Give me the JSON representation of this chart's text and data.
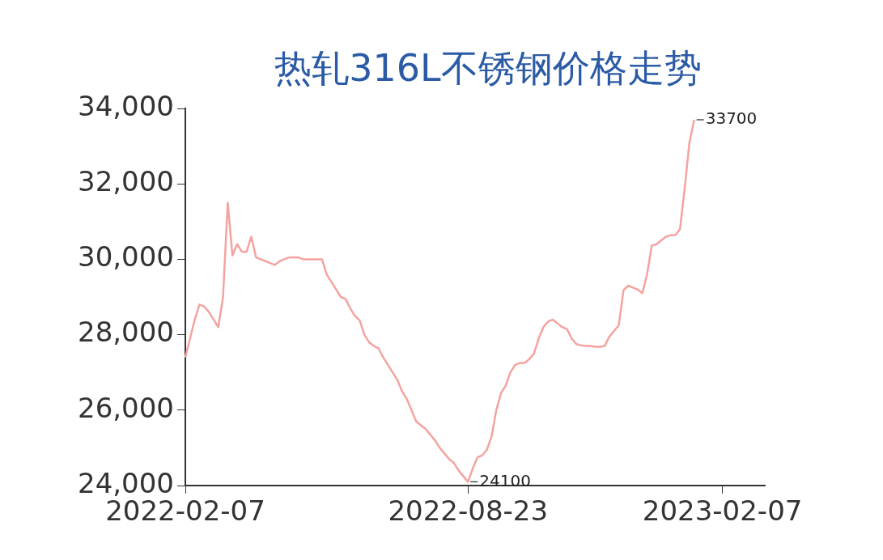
{
  "chart_data": {
    "type": "line",
    "title": "热轧316L不锈钢价格走势",
    "categories": [
      "2022-02-07",
      null,
      null,
      null,
      null,
      null,
      null,
      null,
      null,
      null,
      null,
      null,
      null,
      null,
      null,
      null,
      null,
      null,
      null,
      null,
      null,
      null,
      null,
      null,
      null,
      null,
      null,
      null,
      null,
      null,
      null,
      null,
      null,
      null,
      null,
      null,
      null,
      null,
      null,
      null,
      null,
      null,
      null,
      null,
      null,
      null,
      null,
      null,
      null,
      null,
      null,
      null,
      null,
      null,
      null,
      null,
      null,
      null,
      null,
      null,
      "2022-08-23",
      null,
      null,
      null,
      null,
      null,
      null,
      null,
      null,
      null,
      null,
      null,
      null,
      null,
      null,
      null,
      null,
      null,
      null,
      null,
      null,
      null,
      null,
      null,
      null,
      null,
      null,
      null,
      null,
      null,
      null,
      null,
      null,
      null,
      null,
      null,
      null,
      null,
      null,
      null,
      null,
      null,
      null,
      null,
      null,
      null,
      null,
      null,
      null,
      null,
      null,
      null,
      null,
      null,
      "2023-02-07",
      null,
      null,
      null,
      null,
      null,
      null,
      null,
      null,
      null
    ],
    "series": [
      {
        "color": "#f4a3a0",
        "values": [
          27400,
          27900,
          28400,
          28800,
          28750,
          28600,
          28400,
          28200,
          29000,
          31500,
          30100,
          30400,
          30200,
          30200,
          30600,
          30050,
          30000,
          29950,
          29900,
          29850,
          29950,
          30000,
          30050,
          30050,
          30050,
          30000,
          30000,
          30000,
          30000,
          30000,
          29600,
          29400,
          29200,
          29000,
          28950,
          28700,
          28500,
          28380,
          28000,
          27800,
          27700,
          27640,
          27400,
          27200,
          27000,
          26800,
          26500,
          26300,
          26000,
          25700,
          25600,
          25500,
          25350,
          25200,
          25000,
          24850,
          24700,
          24600,
          24400,
          24250,
          24100,
          24450,
          24750,
          24800,
          24950,
          25300,
          26000,
          26450,
          26650,
          27000,
          27200,
          27250,
          27250,
          27350,
          27500,
          27900,
          28200,
          28350,
          28400,
          28300,
          28200,
          28150,
          27900,
          27750,
          27720,
          27700,
          27700,
          27680,
          27680,
          27700,
          27950,
          28100,
          28250,
          29180,
          29300,
          29250,
          29200,
          29100,
          29600,
          30360,
          30400,
          30500,
          30600,
          30640,
          30640,
          30800,
          31900,
          33100,
          33700,
          null,
          null,
          null,
          null,
          null,
          null,
          null,
          null,
          null,
          null,
          null,
          null,
          null,
          null,
          null
        ],
        "value_labels": [
          null,
          null,
          null,
          null,
          null,
          null,
          null,
          null,
          null,
          null,
          null,
          null,
          null,
          null,
          null,
          null,
          null,
          null,
          null,
          null,
          null,
          null,
          null,
          null,
          null,
          null,
          null,
          null,
          null,
          null,
          null,
          null,
          null,
          null,
          null,
          null,
          null,
          null,
          null,
          null,
          null,
          null,
          null,
          null,
          null,
          null,
          null,
          null,
          null,
          null,
          null,
          null,
          null,
          null,
          null,
          null,
          null,
          null,
          null,
          null,
          "24100",
          null,
          null,
          null,
          null,
          null,
          null,
          null,
          null,
          null,
          null,
          null,
          null,
          null,
          null,
          null,
          null,
          null,
          null,
          null,
          null,
          null,
          null,
          null,
          null,
          null,
          null,
          null,
          null,
          null,
          null,
          null,
          null,
          null,
          null,
          null,
          null,
          null,
          null,
          null,
          null,
          null,
          null,
          null,
          null,
          null,
          null,
          null,
          "33700",
          null,
          null,
          null,
          null,
          null,
          null,
          null,
          null,
          null,
          null,
          null,
          null,
          null,
          null,
          null
        ]
      }
    ],
    "ylim": [
      24000,
      34000
    ],
    "yticks": [
      {
        "value": 24000,
        "label": "24,000"
      },
      {
        "value": 26000,
        "label": "26,000"
      },
      {
        "value": 28000,
        "label": "28,000"
      },
      {
        "value": 30000,
        "label": "30,000"
      },
      {
        "value": 32000,
        "label": "32,000"
      },
      {
        "value": 34000,
        "label": "34,000"
      }
    ],
    "grid": false,
    "legend": false,
    "marker": "none",
    "line_style": "solid"
  }
}
